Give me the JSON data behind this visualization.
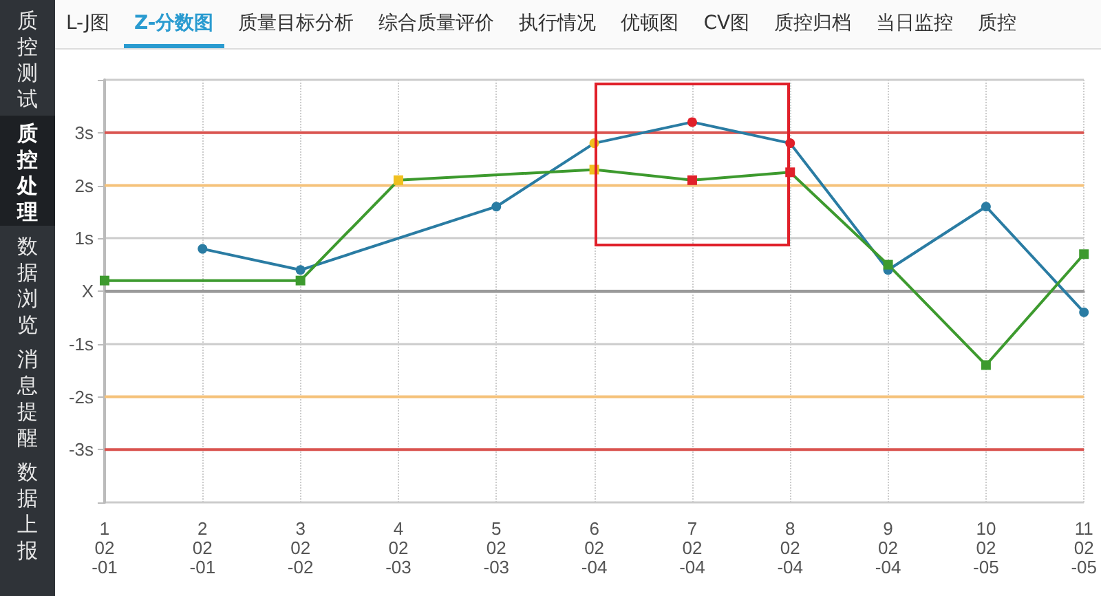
{
  "chart_data": {
    "type": "line",
    "categories": [
      "1\n02\n-01",
      "2\n02\n-01",
      "3\n02\n-02",
      "4\n02\n-03",
      "5\n02\n-03",
      "6\n02\n-04",
      "7\n02\n-04",
      "8\n02\n-04",
      "9\n02\n-04",
      "10\n02\n-05",
      "11\n02\n-05"
    ],
    "series": [
      {
        "color": "#2a7ca3",
        "marker": "circle",
        "values": [
          null,
          0.8,
          0.4,
          null,
          1.6,
          2.8,
          3.2,
          2.8,
          0.4,
          1.6,
          -0.4
        ],
        "colors": [
          "#2a7ca3",
          "#2a7ca3",
          "#2a7ca3",
          "#2a7ca3",
          "#2a7ca3",
          "#f0c020",
          "#e0202a",
          "#e0202a",
          "#2a7ca3",
          "#2a7ca3",
          "#2a7ca3"
        ]
      },
      {
        "color": "#3d9a2e",
        "marker": "square",
        "values": [
          0.2,
          null,
          0.2,
          2.1,
          null,
          2.3,
          2.1,
          2.25,
          0.5,
          -1.4,
          0.7
        ],
        "colors": [
          "#3d9a2e",
          "#3d9a2e",
          "#3d9a2e",
          "#f0c020",
          "#3d9a2e",
          "#f0c020",
          "#e0202a",
          "#e0202a",
          "#3d9a2e",
          "#3d9a2e",
          "#3d9a2e"
        ]
      }
    ],
    "ylim": [
      -4,
      4
    ],
    "yticks": [
      {
        "value": -4,
        "label": null
      },
      {
        "value": -3,
        "label": "-3s"
      },
      {
        "value": -2,
        "label": "-2s"
      },
      {
        "value": -1,
        "label": "-1s"
      },
      {
        "value": 0,
        "label": "X"
      },
      {
        "value": 1,
        "label": "1s"
      },
      {
        "value": 2,
        "label": "2s"
      },
      {
        "value": 3,
        "label": "3s"
      },
      {
        "value": 4,
        "label": null
      }
    ],
    "ref_lines": [
      {
        "axis": "y",
        "value": 3,
        "color": "#d9534f"
      },
      {
        "axis": "y",
        "value": 2,
        "color": "#f5c27a"
      },
      {
        "axis": "y",
        "value": 0,
        "color": "#9a9a9a"
      },
      {
        "axis": "y",
        "value": -2,
        "color": "#f5c27a"
      },
      {
        "axis": "y",
        "value": -3,
        "color": "#d9534f"
      }
    ],
    "grid": true,
    "line_style": "solid",
    "annotations": [
      "质控测试",
      "质控处理",
      "数据浏览",
      "消息提醒",
      "数据上报",
      "L-J图",
      "Z-分数图",
      "质量目标分析",
      "综合质量评价",
      "执行情况",
      "优顿图",
      "CV图",
      "质控归档",
      "当日监控",
      "质控"
    ]
  }
}
